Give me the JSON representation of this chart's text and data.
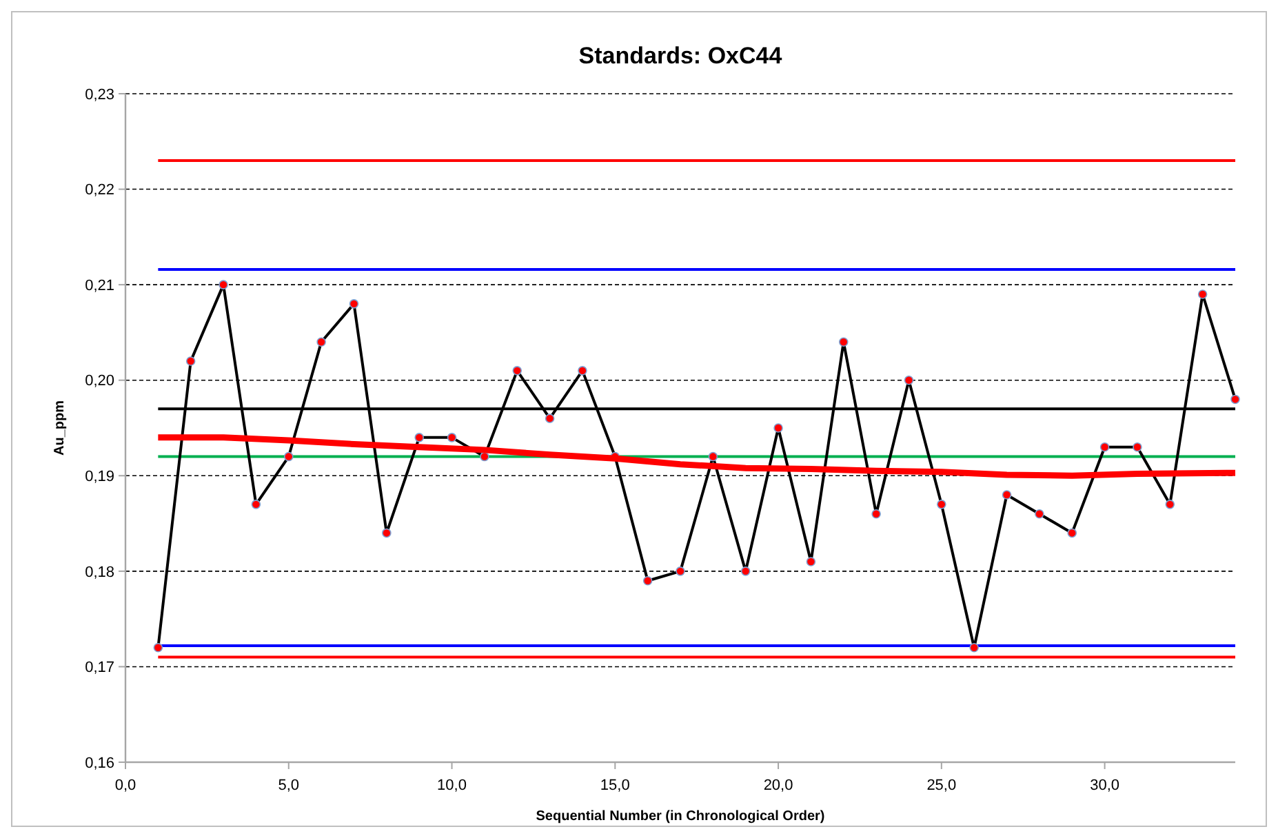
{
  "chart_data": {
    "type": "line",
    "title": "Standards: OxC44",
    "xlabel": "Sequential Number (in Chronological Order)",
    "ylabel": "Au_ppm",
    "xlim": [
      0,
      34
    ],
    "ylim": [
      0.16,
      0.23
    ],
    "xticks": [
      {
        "value": 0,
        "label": "0,0"
      },
      {
        "value": 5,
        "label": "5,0"
      },
      {
        "value": 10,
        "label": "10,0"
      },
      {
        "value": 15,
        "label": "15,0"
      },
      {
        "value": 20,
        "label": "20,0"
      },
      {
        "value": 25,
        "label": "25,0"
      },
      {
        "value": 30,
        "label": "30,0"
      }
    ],
    "yticks": [
      {
        "value": 0.16,
        "label": "0,16"
      },
      {
        "value": 0.17,
        "label": "0,17"
      },
      {
        "value": 0.18,
        "label": "0,18"
      },
      {
        "value": 0.19,
        "label": "0,19"
      },
      {
        "value": 0.2,
        "label": "0,20"
      },
      {
        "value": 0.21,
        "label": "0,21"
      },
      {
        "value": 0.22,
        "label": "0,22"
      },
      {
        "value": 0.23,
        "label": "0,23"
      }
    ],
    "grid": "y",
    "series": [
      {
        "color": "#000000",
        "marker": "circle",
        "x": [
          1,
          2,
          3,
          4,
          5,
          6,
          7,
          8,
          9,
          10,
          11,
          12,
          13,
          14,
          15,
          16,
          17,
          18,
          19,
          20,
          21,
          22,
          23,
          24,
          25,
          26,
          27,
          28,
          29,
          30,
          31,
          32,
          33,
          34
        ],
        "values": [
          0.172,
          0.202,
          0.21,
          0.187,
          0.192,
          0.204,
          0.208,
          0.184,
          0.194,
          0.194,
          0.192,
          0.201,
          0.196,
          0.201,
          0.192,
          0.179,
          0.18,
          0.192,
          0.18,
          0.195,
          0.181,
          0.204,
          0.186,
          0.2,
          0.187,
          0.172,
          0.188,
          0.186,
          0.184,
          0.193,
          0.193,
          0.187,
          0.209,
          0.198
        ]
      },
      {
        "color": "#ff0000",
        "marker": "none",
        "x": [
          1,
          3,
          5,
          7,
          9,
          11,
          13,
          15,
          17,
          19,
          21,
          23,
          25,
          27,
          29,
          31,
          34
        ],
        "values": [
          0.194,
          0.194,
          0.1937,
          0.1933,
          0.193,
          0.1927,
          0.1922,
          0.1918,
          0.1912,
          0.1908,
          0.1907,
          0.1905,
          0.1904,
          0.1901,
          0.19,
          0.1902,
          0.1903
        ]
      }
    ],
    "ref_lines": [
      {
        "axis": "y",
        "value": 0.223,
        "color": "#ff0000"
      },
      {
        "axis": "y",
        "value": 0.2116,
        "color": "#0000ff"
      },
      {
        "axis": "y",
        "value": 0.197,
        "color": "#000000"
      },
      {
        "axis": "y",
        "value": 0.192,
        "color": "#00b050"
      },
      {
        "axis": "y",
        "value": 0.1722,
        "color": "#0000ff"
      },
      {
        "axis": "y",
        "value": 0.171,
        "color": "#ff0000"
      }
    ]
  }
}
